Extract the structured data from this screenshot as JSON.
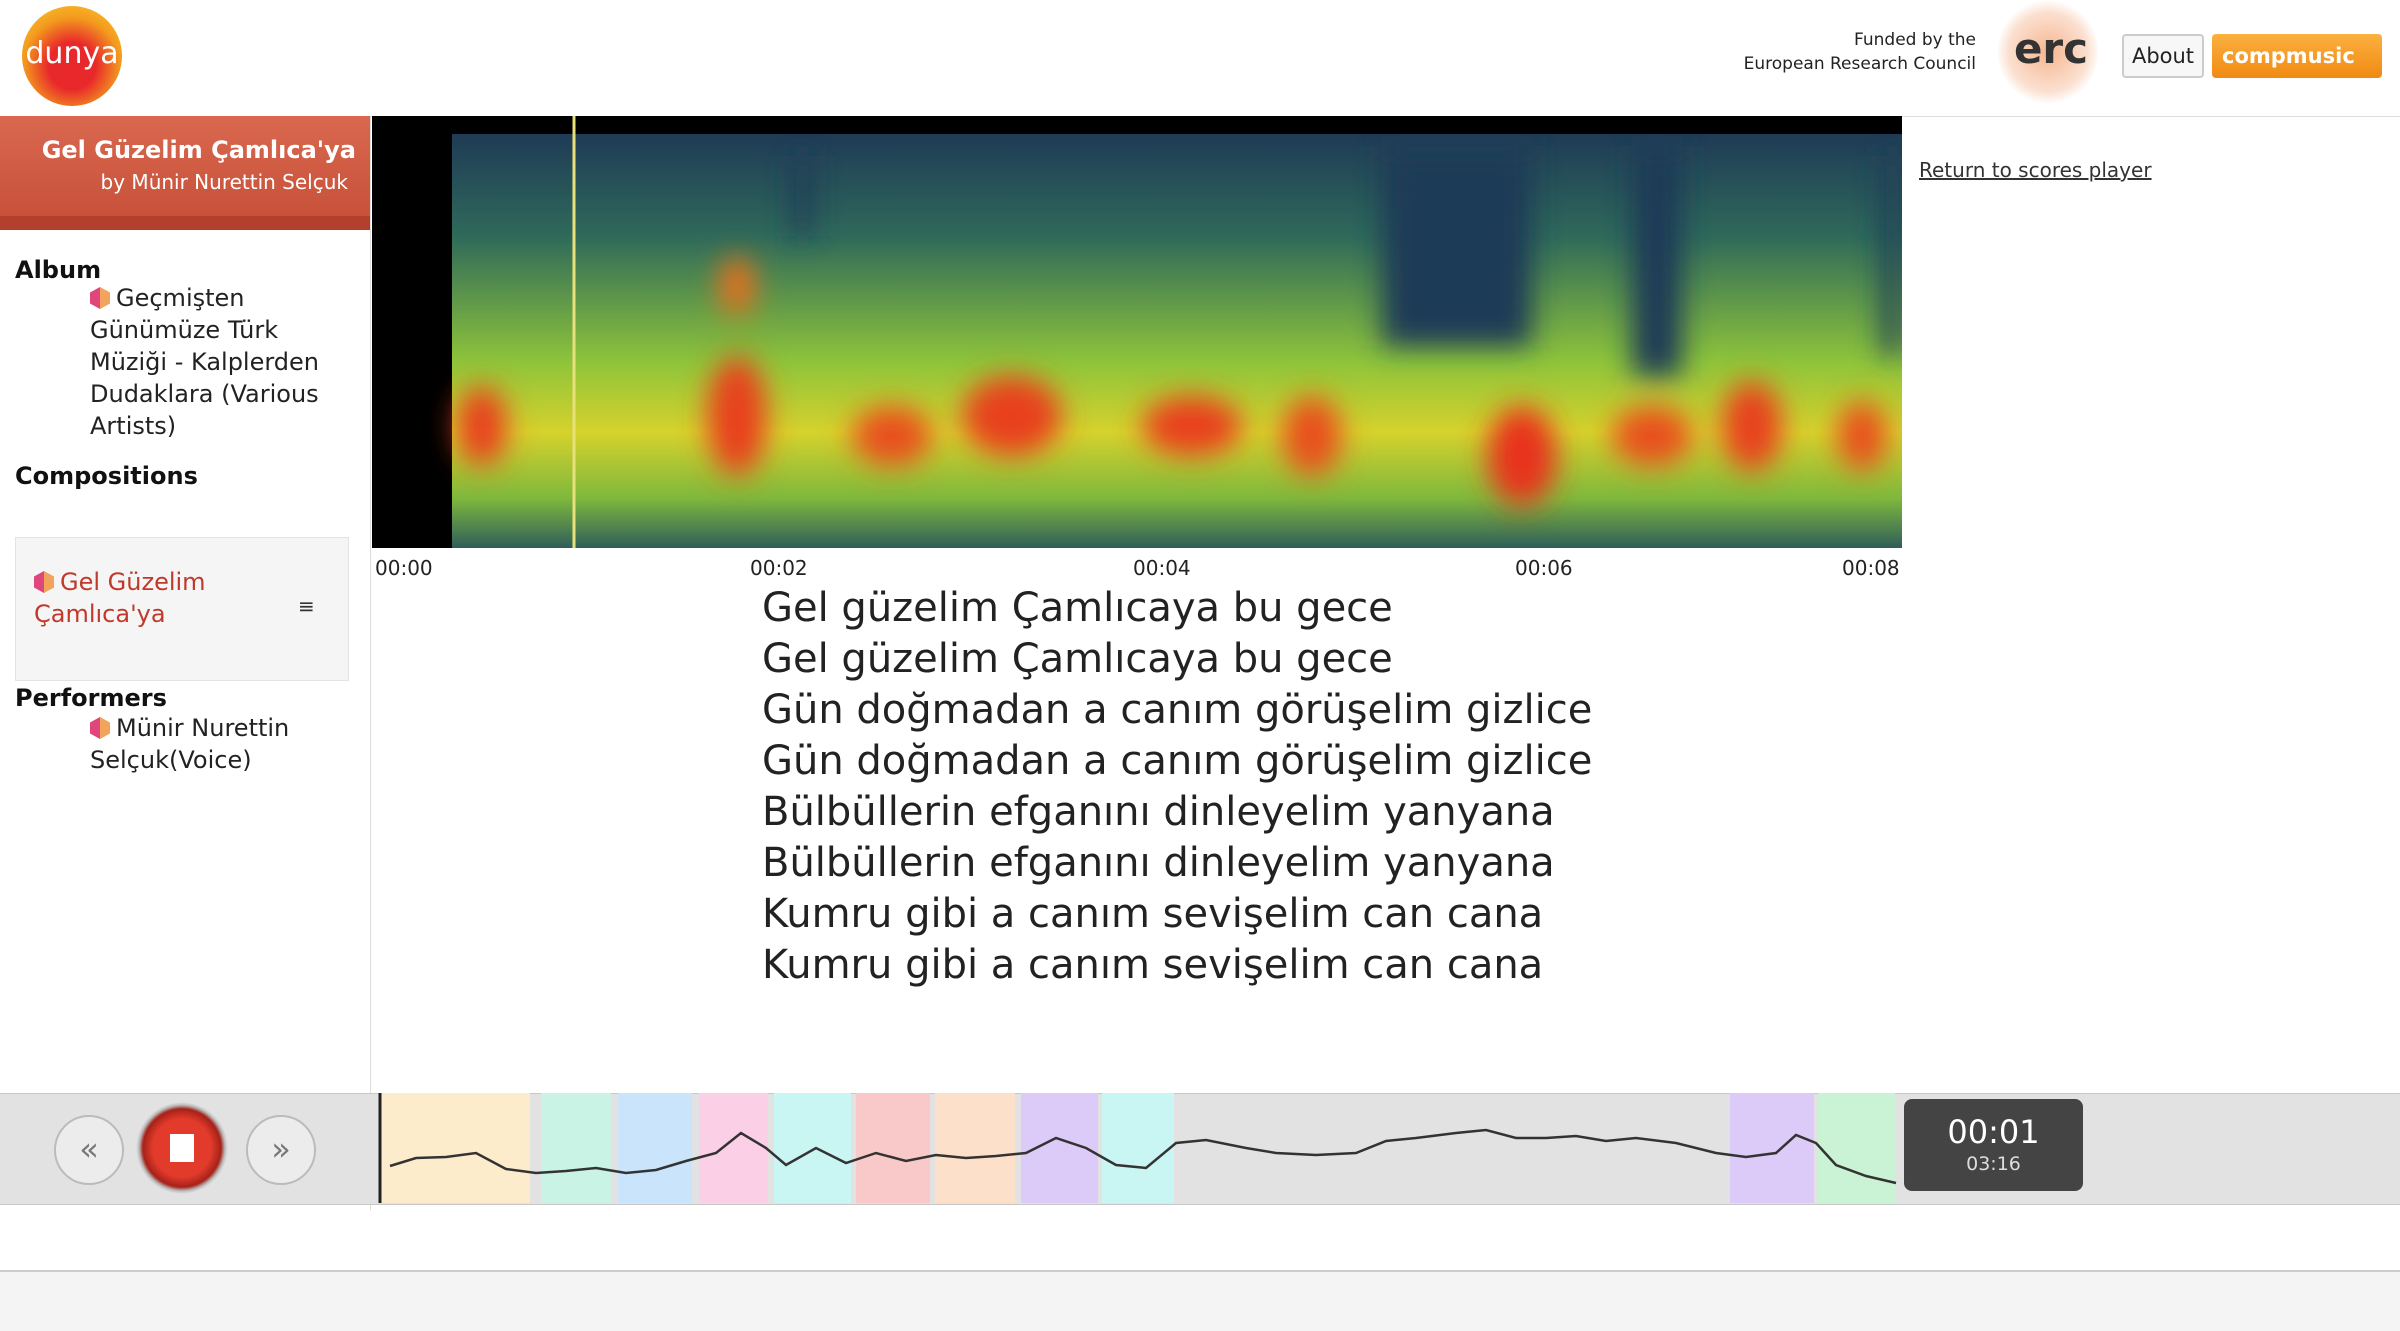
{
  "header": {
    "logo": "dunya",
    "funded_line1": "Funded by the",
    "funded_line2": "European Research Council",
    "erc": "erc",
    "about": "About",
    "login": "compmusic"
  },
  "recording": {
    "title": "Gel Güzelim Çamlıca'ya",
    "artist": "by Münir Nurettin Selçuk"
  },
  "sidebar": {
    "album_heading": "Album",
    "album": "Geçmişten Günümüze Türk Müziği - Kalplerden Dudaklara (Various Artists)",
    "compositions_heading": "Compositions",
    "composition": "Gel Güzelim Çamlıca'ya",
    "performers_heading": "Performers",
    "performer": "Münir Nurettin Selçuk(Voice)"
  },
  "spectrogram": {
    "time_labels": [
      "00:00",
      "00:02",
      "00:04",
      "00:06",
      "00:08"
    ]
  },
  "lyrics": [
    "Gel güzelim Çamlıcaya bu gece",
    "Gel güzelim Çamlıcaya bu gece",
    "Gün doğmadan a canım görüşelim gizlice",
    "Gün doğmadan a canım görüşelim gizlice",
    "Bülbüllerin efganını dinleyelim yanyana",
    "Bülbüllerin efganını dinleyelim yanyana",
    "Kumru gibi a canım sevişelim can cana",
    "Kumru gibi a canım sevişelim can cana"
  ],
  "link": "Return to scores player",
  "player": {
    "current_time": "00:01",
    "duration": "03:16"
  }
}
